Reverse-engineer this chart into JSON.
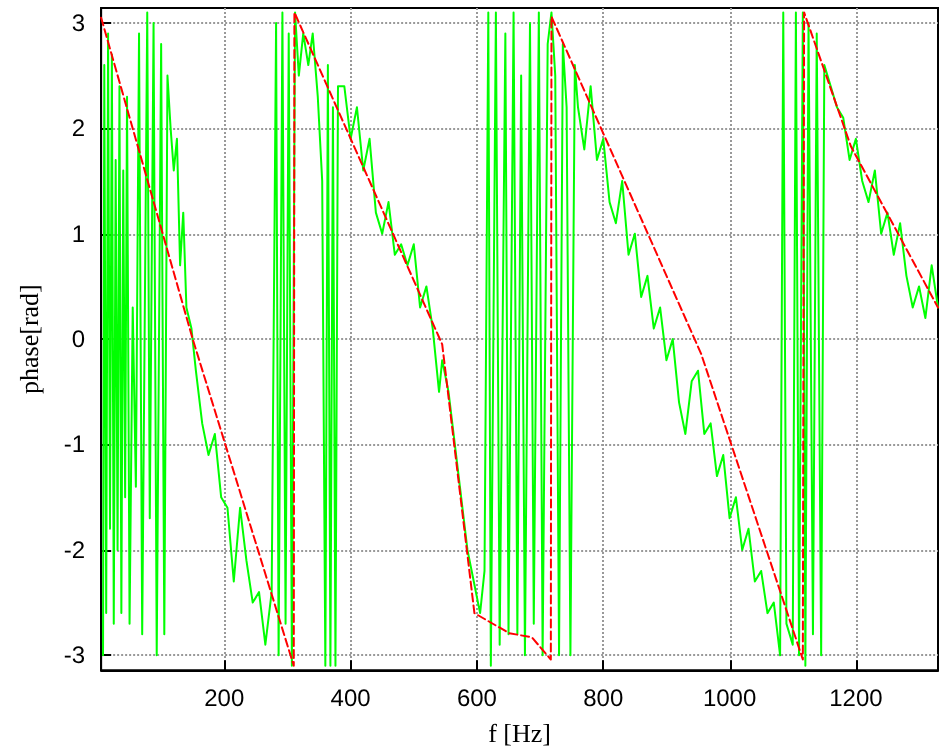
{
  "chart_data": {
    "type": "line",
    "xlabel": "f [Hz]",
    "ylabel": "phase[rad]",
    "xlim": [
      5,
      1330
    ],
    "ylim": [
      -3.1416,
      3.1416
    ],
    "xticks": [
      200,
      400,
      600,
      800,
      1000,
      1200
    ],
    "yticks": [
      -3,
      -2,
      -1,
      0,
      1,
      2,
      3
    ],
    "grid": true,
    "marker": "none",
    "series": [
      {
        "color": "#00ff00",
        "line_style": "solid",
        "x": [
          8,
          10,
          13,
          16,
          19,
          22,
          25,
          28,
          31,
          34,
          37,
          40,
          43,
          46,
          50,
          55,
          60,
          65,
          70,
          78,
          82,
          88,
          93,
          100,
          105,
          110,
          115,
          120,
          125,
          130,
          135,
          140,
          148,
          155,
          165,
          175,
          185,
          195,
          205,
          215,
          225,
          235,
          245,
          255,
          265,
          275,
          282,
          286,
          292,
          297,
          302,
          307,
          312,
          318,
          325,
          333,
          340,
          348,
          355,
          360,
          364,
          368,
          372,
          376,
          380,
          390,
          400,
          410,
          420,
          430,
          440,
          450,
          460,
          470,
          480,
          490,
          500,
          510,
          520,
          530,
          540,
          545,
          555,
          565,
          575,
          585,
          595,
          605,
          612,
          618,
          622,
          630,
          636,
          645,
          650,
          658,
          664,
          670,
          676,
          684,
          690,
          698,
          704,
          712,
          718,
          724,
          730,
          736,
          742,
          748,
          755,
          760,
          770,
          780,
          790,
          800,
          810,
          820,
          830,
          840,
          850,
          860,
          870,
          880,
          890,
          900,
          910,
          920,
          930,
          940,
          950,
          960,
          970,
          980,
          990,
          1000,
          1010,
          1020,
          1030,
          1040,
          1050,
          1060,
          1070,
          1080,
          1085,
          1090,
          1100,
          1105,
          1110,
          1116,
          1120,
          1125,
          1132,
          1138,
          1145,
          1150,
          1160,
          1170,
          1180,
          1190,
          1200,
          1210,
          1220,
          1230,
          1240,
          1250,
          1260,
          1270,
          1280,
          1290,
          1300,
          1310,
          1320,
          1330
        ],
        "values": [
          -3,
          2.6,
          -2.6,
          2.9,
          -1.8,
          2.7,
          -2.7,
          1.7,
          -2.0,
          2.4,
          -2.6,
          1.6,
          -1.5,
          2.3,
          -2.7,
          0.3,
          -1.4,
          2.9,
          -2.8,
          3.1,
          -1.7,
          3.0,
          -3.0,
          2.8,
          -2.8,
          2.5,
          2.0,
          1.6,
          1.9,
          0.7,
          1.2,
          0.3,
          0.1,
          -0.3,
          -0.8,
          -1.1,
          -0.9,
          -1.5,
          -1.6,
          -2.3,
          -1.6,
          -2.1,
          -2.5,
          -2.4,
          -2.9,
          -2.4,
          3.0,
          -3.0,
          3.1,
          -2.7,
          2.9,
          -3.1,
          3.1,
          2.5,
          2.9,
          2.6,
          2.9,
          2.3,
          1.5,
          -3.1,
          2.6,
          -3.1,
          2.2,
          -3.1,
          2.4,
          2.4,
          1.9,
          2.2,
          1.6,
          1.9,
          1.2,
          1.0,
          1.3,
          0.8,
          0.9,
          0.7,
          0.9,
          0.3,
          0.5,
          0.1,
          -0.5,
          -0.2,
          -0.5,
          -1.0,
          -1.5,
          -2.0,
          -2.3,
          -2.6,
          -2.2,
          3.1,
          -3.1,
          3.1,
          -2.9,
          2.9,
          -2.8,
          3.1,
          -2.8,
          2.5,
          -3.0,
          3.0,
          -2.7,
          3.1,
          -3.0,
          2.8,
          3.1,
          2.5,
          -3.0,
          2.8,
          2.2,
          -3.0,
          2.6,
          2.2,
          1.8,
          2.4,
          1.7,
          1.9,
          1.3,
          1.1,
          1.5,
          0.8,
          1.0,
          0.4,
          0.6,
          0.1,
          0.3,
          -0.2,
          0.0,
          -0.6,
          -0.9,
          -0.4,
          -0.3,
          -0.9,
          -0.8,
          -1.3,
          -1.1,
          -1.7,
          -1.5,
          -2.0,
          -1.8,
          -2.3,
          -2.2,
          -2.6,
          -2.5,
          -3.0,
          3.1,
          -2.7,
          -2.9,
          3.1,
          -3.0,
          3.1,
          -3.1,
          3.0,
          -2.8,
          2.9,
          -3.0,
          2.6,
          2.4,
          2.2,
          2.1,
          1.7,
          1.9,
          1.5,
          1.3,
          1.6,
          1.0,
          1.2,
          0.8,
          1.1,
          0.6,
          0.3,
          0.5,
          0.2,
          0.7,
          0.3
        ]
      },
      {
        "color": "#ff0000",
        "line_style": "dashed",
        "x": [
          5,
          150,
          310,
          311,
          545,
          596,
          651,
          687,
          717,
          718,
          955,
          1116,
          1118,
          1192,
          1330
        ],
        "values": [
          3.05,
          0,
          -3.1,
          3.1,
          -0.05,
          -2.6,
          -2.79,
          -2.83,
          -3.04,
          3.06,
          -0.14,
          -3.04,
          3.1,
          1.83,
          0.3
        ]
      }
    ]
  }
}
